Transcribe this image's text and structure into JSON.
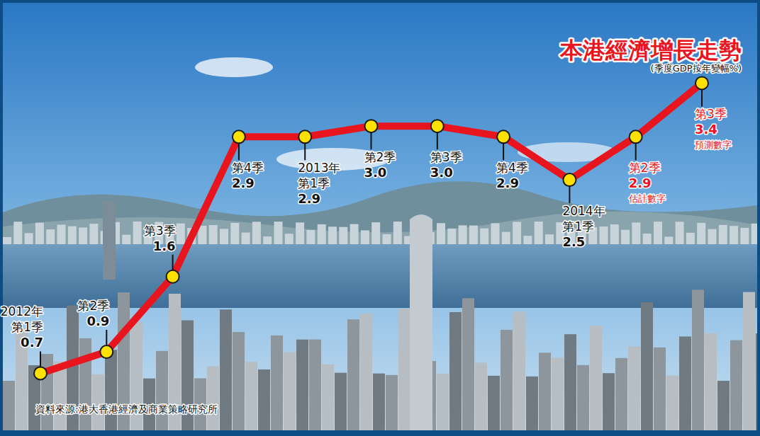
{
  "chart_data": {
    "type": "line",
    "title": "本港經濟增長走勢",
    "subtitle": "(季度GDP按年變幅%)",
    "source": "資料來源:港大香港經濟及商業策略研究所",
    "categories": [
      "2012年第1季",
      "第2季",
      "第3季",
      "第4季",
      "2013年第1季",
      "第2季",
      "第3季",
      "第4季",
      "2014年第1季",
      "第2季",
      "第3季"
    ],
    "values": [
      0.7,
      0.9,
      1.6,
      2.9,
      2.9,
      3.0,
      3.0,
      2.9,
      2.5,
      2.9,
      3.4
    ],
    "value_labels": [
      "0.7",
      "0.9",
      "1.6",
      "2.9",
      "2.9",
      "3.0",
      "3.0",
      "2.9",
      "2.5",
      "2.9",
      "3.4"
    ],
    "point_notes": [
      null,
      null,
      null,
      null,
      null,
      null,
      null,
      null,
      null,
      "估計數字",
      "預測數字"
    ],
    "color": "#e8141e",
    "marker": "circle",
    "ylim": [
      0.4,
      3.6
    ],
    "data_labels": true,
    "tick_labels": false
  }
}
